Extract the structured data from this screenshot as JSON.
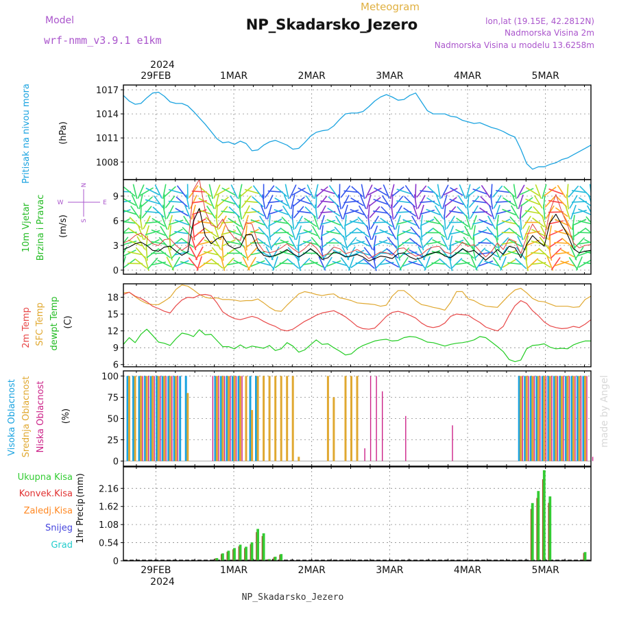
{
  "header": {
    "meteogram_label": "Meteogram",
    "model_label": "Model",
    "model_name": "wrf-nmm_v3.9.1 e1km",
    "station_title": "NP_Skadarsko_Jezero",
    "coords": "lon,lat (19.15E, 42.2812N)",
    "elevation": "Nadmorska Visina 2m",
    "model_elevation": "Nadmorska Visina u modelu 13.6258m",
    "footer_station": "NP_Skadarsko_Jezero",
    "credit": "made by Angel"
  },
  "time_axis": {
    "year_label": "2024",
    "dates": [
      "29FEB",
      "1MAR",
      "2MAR",
      "3MAR",
      "4MAR",
      "5MAR"
    ],
    "start": "2024-02-28 14:00",
    "end": "2024-03-05 14:00"
  },
  "colors": {
    "pressure": "#1aa3e0",
    "wind_speed": "#000000",
    "gust": "#e04040",
    "temp_2m": "#e84848",
    "temp_sfc": "#e0a830",
    "dewpoint": "#22cc22",
    "cloud_high": "#1aa3e0",
    "cloud_mid": "#e0a830",
    "cloud_low": "#cc2288",
    "precip_total": "#33cc33",
    "precip_conv": "#e03030",
    "precip_frozen": "#ff8822",
    "precip_snow": "#4444dd",
    "precip_hail": "#22cccc",
    "title_purple": "#aa55cc",
    "meteogram_gold": "#e0b040"
  },
  "chart_data": [
    {
      "type": "line",
      "panel": "pressure",
      "ylabel_1": "Pritisak na nivou mora",
      "ylabel_2": "(hPa)",
      "ylim": [
        1005.8,
        1017.6
      ],
      "yticks": [
        1008,
        1011,
        1014,
        1017
      ],
      "grid": true,
      "series": [
        {
          "values": [
            1016.3,
            1015.6,
            1015.2,
            1015.3,
            1016.0,
            1016.6,
            1016.7,
            1016.2,
            1015.5,
            1015.3,
            1015.3,
            1015.0,
            1014.3,
            1013.5,
            1012.7,
            1011.8,
            1010.9,
            1010.4,
            1010.5,
            1010.2,
            1010.6,
            1010.3,
            1009.4,
            1009.5,
            1010.1,
            1010.5,
            1010.7,
            1010.4,
            1010.1,
            1009.6,
            1009.7,
            1010.4,
            1011.2,
            1011.7,
            1011.9,
            1012.0,
            1012.5,
            1013.3,
            1014.0,
            1014.1,
            1014.1,
            1014.3,
            1014.9,
            1015.6,
            1016.1,
            1016.4,
            1016.1,
            1015.7,
            1015.8,
            1016.3,
            1016.6,
            1015.5,
            1014.4,
            1014.0,
            1014.0,
            1014.0,
            1013.7,
            1013.6,
            1013.2,
            1013.0,
            1012.8,
            1012.9,
            1012.6,
            1012.3,
            1012.1,
            1011.8,
            1011.4,
            1011.1,
            1009.6,
            1007.8,
            1007.1,
            1007.4,
            1007.4,
            1007.7,
            1007.9,
            1008.3,
            1008.5,
            1008.9,
            1009.3,
            1009.7,
            1010.1
          ]
        }
      ]
    },
    {
      "type": "line",
      "panel": "wind",
      "ylabel_1": "10m Vjetar",
      "ylabel_2": "Brzina i Pravac",
      "ylabel_3": "(m/s)",
      "compass_n": "N",
      "compass_s": "S",
      "compass_w": "W",
      "compass_e": "E",
      "ylim": [
        -0.5,
        11
      ],
      "yticks": [
        0,
        3,
        6,
        9
      ],
      "grid": true,
      "series": [
        {
          "name": "speed",
          "values": [
            2.5,
            2.8,
            3.2,
            3.4,
            3.0,
            2.4,
            2.3,
            2.8,
            2.9,
            2.3,
            1.8,
            2.2,
            6.0,
            7.5,
            4.2,
            3.2,
            3.8,
            4.1,
            3.0,
            2.6,
            2.8,
            4.3,
            4.3,
            2.6,
            1.8,
            1.6,
            1.8,
            2.1,
            2.5,
            2.0,
            1.6,
            2.0,
            2.6,
            2.1,
            1.3,
            1.5,
            2.2,
            2.0,
            1.6,
            1.7,
            1.9,
            1.6,
            1.1,
            1.4,
            1.7,
            1.6,
            1.4,
            2.0,
            2.1,
            1.6,
            1.3,
            1.5,
            1.9,
            2.1,
            2.2,
            1.7,
            1.5,
            2.0,
            2.6,
            2.2,
            2.4,
            1.8,
            1.2,
            1.8,
            2.5,
            1.9,
            2.9,
            2.7,
            1.5,
            3.1,
            4.2,
            3.5,
            2.9,
            5.8,
            6.8,
            5.5,
            4.3,
            2.6,
            2.1,
            2.3,
            2.4
          ]
        },
        {
          "name": "gust",
          "values": [
            3.3,
            3.6,
            4.2,
            4.5,
            3.9,
            3.2,
            3.0,
            3.7,
            3.8,
            3.0,
            2.4,
            2.9,
            9.8,
            11.0,
            7.2,
            5.5,
            5.2,
            6.2,
            4.8,
            3.9,
            3.6,
            5.8,
            5.6,
            3.3,
            2.3,
            2.1,
            2.3,
            2.7,
            3.2,
            2.6,
            2.1,
            2.6,
            3.3,
            2.7,
            1.7,
            2.0,
            2.8,
            2.6,
            2.0,
            2.2,
            2.5,
            2.1,
            1.4,
            1.8,
            2.2,
            2.1,
            1.8,
            2.6,
            2.7,
            2.1,
            1.7,
            1.9,
            2.5,
            2.8,
            2.9,
            2.2,
            2.0,
            2.6,
            3.4,
            2.9,
            3.1,
            2.3,
            1.6,
            2.3,
            3.3,
            2.5,
            3.8,
            3.5,
            2.0,
            4.0,
            5.6,
            4.5,
            3.8,
            7.2,
            9.2,
            7.1,
            5.5,
            3.3,
            2.7,
            3.0,
            3.1
          ]
        }
      ]
    },
    {
      "type": "line",
      "panel": "temperature",
      "ylabel_1": "2m Temp",
      "ylabel_2": "SFC Temp",
      "ylabel_3": "dewpt Temp",
      "ylabel_4": "(C)",
      "ylim": [
        5.6,
        20.4
      ],
      "yticks": [
        6,
        9,
        12,
        15,
        18
      ],
      "grid": true,
      "series": [
        {
          "name": "2m Temp",
          "values": [
            18.5,
            18.9,
            18.2,
            17.8,
            17.2,
            16.4,
            16.0,
            15.5,
            15.2,
            16.5,
            17.5,
            18.0,
            17.9,
            18.4,
            18.5,
            18.3,
            17.0,
            15.4,
            14.7,
            14.2,
            14.0,
            14.3,
            14.6,
            14.3,
            13.7,
            13.2,
            12.8,
            12.2,
            12.0,
            12.3,
            13.0,
            13.7,
            14.2,
            14.8,
            15.2,
            15.4,
            15.6,
            15.1,
            14.5,
            13.7,
            12.8,
            12.4,
            12.3,
            12.5,
            13.5,
            14.6,
            15.3,
            15.5,
            15.2,
            14.8,
            14.3,
            13.4,
            12.8,
            12.6,
            12.8,
            13.4,
            14.6,
            15.0,
            14.9,
            14.8,
            14.1,
            13.5,
            12.7,
            12.3,
            12.0,
            12.8,
            14.8,
            16.5,
            17.4,
            16.9,
            15.6,
            14.7,
            13.6,
            12.9,
            12.6,
            12.4,
            12.5,
            12.8,
            12.6,
            13.2,
            14.0
          ]
        },
        {
          "name": "SFC Temp",
          "values": [
            18.8,
            18.9,
            18.1,
            17.4,
            16.9,
            16.7,
            16.7,
            17.3,
            18.0,
            19.4,
            20.2,
            20.0,
            19.3,
            18.5,
            18.0,
            17.8,
            17.9,
            17.6,
            17.6,
            17.5,
            17.3,
            17.4,
            17.4,
            17.7,
            17.0,
            16.2,
            15.6,
            15.5,
            16.6,
            17.6,
            18.6,
            19.0,
            18.8,
            18.5,
            18.3,
            18.5,
            18.6,
            17.9,
            17.7,
            17.4,
            17.0,
            16.9,
            16.8,
            16.7,
            16.4,
            16.6,
            18.2,
            19.2,
            19.2,
            18.4,
            17.4,
            16.7,
            16.5,
            16.2,
            16.0,
            15.7,
            17.1,
            19.0,
            19.0,
            17.7,
            17.4,
            16.8,
            16.4,
            16.3,
            16.2,
            17.3,
            18.4,
            19.3,
            19.6,
            18.8,
            17.8,
            17.3,
            17.2,
            16.8,
            16.4,
            16.4,
            16.4,
            16.2,
            16.3,
            17.6,
            18.2
          ]
        },
        {
          "name": "dewpt Temp",
          "values": [
            9.6,
            10.8,
            9.9,
            11.4,
            12.3,
            11.2,
            10.0,
            9.8,
            9.4,
            10.6,
            11.6,
            11.4,
            11.0,
            12.2,
            11.3,
            11.4,
            10.3,
            9.2,
            9.2,
            8.8,
            9.5,
            8.9,
            9.3,
            9.1,
            8.9,
            9.4,
            8.5,
            8.8,
            9.9,
            9.3,
            8.2,
            8.6,
            9.5,
            10.4,
            9.6,
            9.7,
            9.0,
            8.4,
            7.7,
            7.9,
            8.8,
            9.4,
            9.8,
            10.2,
            10.4,
            10.5,
            10.2,
            10.3,
            10.8,
            11.0,
            10.9,
            10.5,
            10.0,
            9.9,
            9.6,
            9.3,
            9.6,
            9.8,
            9.9,
            10.1,
            10.4,
            11.0,
            10.8,
            10.0,
            9.2,
            8.3,
            6.9,
            6.5,
            6.8,
            8.8,
            9.4,
            9.5,
            9.7,
            9.1,
            8.8,
            8.9,
            8.8,
            9.5,
            9.9,
            10.2,
            10.2
          ]
        }
      ]
    },
    {
      "type": "bar",
      "panel": "clouds",
      "ylabel_1": "Visoka Oblacnost",
      "ylabel_2": "Srednja Oblacnost",
      "ylabel_3": "Niska Oblacnost",
      "ylabel_4": "(%)",
      "ylim": [
        -6,
        106
      ],
      "yticks": [
        0,
        25,
        50,
        75,
        100
      ],
      "grid": true,
      "series": [
        {
          "name": "Visoka Oblacnost",
          "values": [
            0,
            100,
            100,
            100,
            100,
            100,
            100,
            100,
            100,
            100,
            100,
            100,
            0,
            0,
            0,
            0,
            100,
            100,
            100,
            100,
            100,
            0,
            100,
            100,
            0,
            0,
            0,
            0,
            0,
            0,
            0,
            0,
            0,
            0,
            0,
            0,
            0,
            0,
            0,
            0,
            0,
            0,
            0,
            0,
            0,
            0,
            0,
            0,
            0,
            0,
            0,
            0,
            0,
            0,
            0,
            0,
            0,
            0,
            0,
            0,
            0,
            0,
            0,
            0,
            0,
            0,
            0,
            0,
            100,
            100,
            100,
            100,
            100,
            100,
            100,
            100,
            100,
            100,
            100,
            100,
            0
          ]
        },
        {
          "name": "Srednja Oblacnost",
          "values": [
            0,
            100,
            100,
            100,
            100,
            100,
            100,
            100,
            100,
            100,
            0,
            80,
            0,
            0,
            0,
            0,
            100,
            100,
            100,
            100,
            100,
            100,
            60,
            100,
            100,
            100,
            100,
            100,
            100,
            100,
            5,
            0,
            0,
            0,
            0,
            100,
            75,
            0,
            100,
            100,
            100,
            0,
            0,
            0,
            0,
            0,
            0,
            0,
            0,
            0,
            0,
            0,
            0,
            0,
            0,
            0,
            0,
            0,
            0,
            0,
            0,
            0,
            0,
            0,
            0,
            0,
            0,
            0,
            100,
            100,
            100,
            100,
            100,
            100,
            100,
            100,
            100,
            100,
            100,
            100,
            0
          ]
        },
        {
          "name": "Niska Oblacnost",
          "values": [
            0,
            0,
            0,
            100,
            100,
            100,
            100,
            100,
            100,
            100,
            0,
            0,
            0,
            0,
            0,
            100,
            100,
            100,
            100,
            100,
            100,
            0,
            0,
            0,
            0,
            0,
            0,
            0,
            0,
            0,
            0,
            0,
            0,
            0,
            0,
            0,
            0,
            0,
            0,
            0,
            0,
            15,
            100,
            100,
            82,
            0,
            0,
            0,
            53,
            0,
            0,
            0,
            0,
            0,
            0,
            0,
            42,
            0,
            0,
            0,
            0,
            0,
            0,
            0,
            0,
            0,
            0,
            0,
            100,
            100,
            100,
            100,
            100,
            100,
            100,
            100,
            100,
            100,
            100,
            100,
            5
          ]
        }
      ]
    },
    {
      "type": "bar",
      "panel": "precipitation",
      "ylabel_1": "1hr Precip",
      "ylabel_2": "(mm)",
      "legend": [
        "Ukupna Kisa",
        "Konvek.Kisa",
        "Zaledj.Kisa",
        "Snijeg",
        "Grad"
      ],
      "ylim": [
        0,
        2.8
      ],
      "yticks": [
        0,
        0.54,
        1.08,
        1.62,
        2.16
      ],
      "grid": true,
      "series": [
        {
          "name": "Ukupna Kisa",
          "values": [
            0,
            0,
            0,
            0,
            0,
            0,
            0,
            0,
            0,
            0,
            0,
            0,
            0,
            0,
            0,
            0,
            0.08,
            0.22,
            0.3,
            0.38,
            0.48,
            0.42,
            0.55,
            0.95,
            0.82,
            0.05,
            0.12,
            0.2,
            0,
            0,
            0,
            0,
            0,
            0,
            0,
            0,
            0,
            0,
            0,
            0,
            0,
            0,
            0,
            0,
            0,
            0,
            0,
            0,
            0,
            0,
            0,
            0,
            0,
            0,
            0,
            0,
            0,
            0,
            0,
            0,
            0,
            0,
            0,
            0,
            0,
            0,
            0,
            0,
            0,
            0,
            1.72,
            2.08,
            2.7,
            1.92,
            0,
            0,
            0,
            0,
            0,
            0.26,
            0
          ]
        },
        {
          "name": "Konvek.Kisa",
          "values": [
            0,
            0,
            0,
            0,
            0,
            0,
            0,
            0,
            0,
            0,
            0,
            0,
            0,
            0,
            0,
            0,
            0,
            0,
            0,
            0,
            0,
            0,
            0,
            0,
            0,
            0,
            0,
            0,
            0,
            0,
            0,
            0,
            0,
            0,
            0,
            0,
            0,
            0,
            0,
            0,
            0,
            0,
            0,
            0,
            0,
            0,
            0,
            0,
            0,
            0,
            0,
            0,
            0,
            0,
            0,
            0,
            0,
            0,
            0,
            0,
            0,
            0,
            0,
            0,
            0,
            0,
            0,
            0,
            0,
            0,
            0,
            0,
            0,
            0,
            0,
            0,
            0,
            0,
            0,
            0,
            0
          ]
        }
      ]
    }
  ]
}
